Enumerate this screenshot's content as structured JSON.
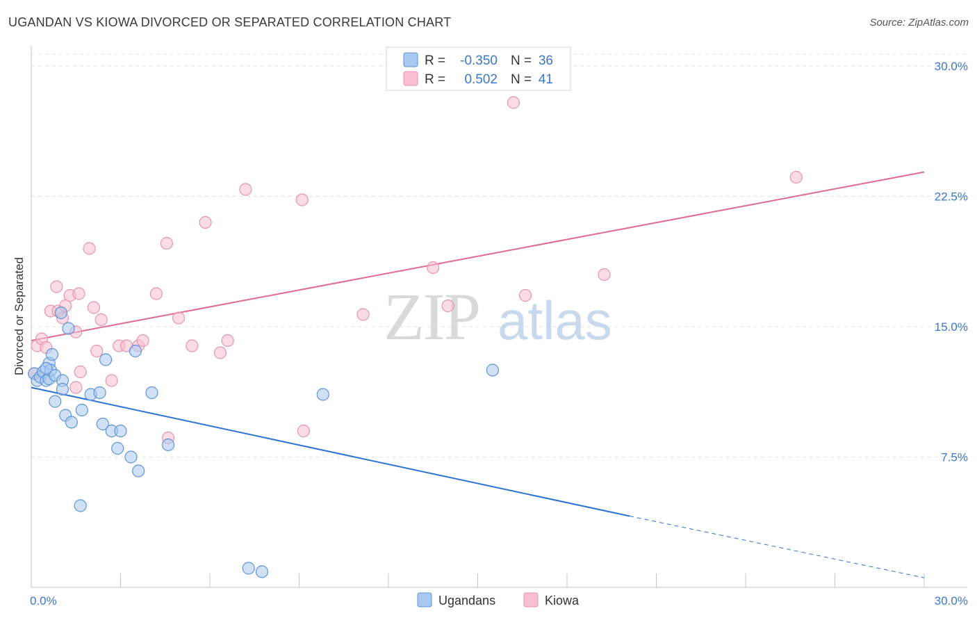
{
  "title": "UGANDAN VS KIOWA DIVORCED OR SEPARATED CORRELATION CHART",
  "source": "Source: ZipAtlas.com",
  "watermark": {
    "zip": "ZIP",
    "atlas": "atlas"
  },
  "colors": {
    "ugandans_fill": "#a9c8ef",
    "ugandans_stroke": "#5b93d6",
    "ugandans_line": "#2a72d4",
    "kiowa_fill": "#f7bfd0",
    "kiowa_stroke": "#e693ad",
    "kiowa_line": "#e0698f",
    "grid": "#dde3ea",
    "axis_text": "#3b78c4"
  },
  "legend": {
    "rows": [
      {
        "r_label": "R =",
        "r_value": "-0.350",
        "n_label": "N =",
        "n_value": "36"
      },
      {
        "r_label": "R =",
        "r_value": "0.502",
        "n_label": "N =",
        "n_value": "41"
      }
    ]
  },
  "chart_data": {
    "type": "scatter",
    "title": "UGANDAN VS KIOWA DIVORCED OR SEPARATED CORRELATION CHART",
    "xlabel": "",
    "ylabel": "Divorced or Separated",
    "xlim": [
      0,
      30
    ],
    "ylim": [
      0,
      31
    ],
    "x_tick_labels": [
      "0.0%",
      "30.0%"
    ],
    "y_ticks": [
      7.5,
      15.0,
      22.5,
      30.0
    ],
    "y_tick_labels": [
      "7.5%",
      "15.0%",
      "22.5%",
      "30.0%"
    ],
    "series": [
      {
        "name": "Ugandans",
        "r": -0.35,
        "n": 36,
        "points": [
          [
            0.1,
            12.3
          ],
          [
            0.2,
            11.9
          ],
          [
            0.3,
            12.1
          ],
          [
            0.4,
            12.4
          ],
          [
            0.5,
            11.9
          ],
          [
            0.6,
            12.0
          ],
          [
            0.6,
            12.9
          ],
          [
            0.7,
            13.4
          ],
          [
            0.65,
            12.5
          ],
          [
            0.8,
            12.2
          ],
          [
            0.8,
            10.7
          ],
          [
            1.0,
            15.8
          ],
          [
            1.05,
            11.9
          ],
          [
            1.05,
            11.4
          ],
          [
            1.15,
            9.9
          ],
          [
            1.25,
            14.9
          ],
          [
            1.35,
            9.5
          ],
          [
            1.7,
            10.2
          ],
          [
            2.0,
            11.1
          ],
          [
            2.3,
            11.2
          ],
          [
            2.4,
            9.4
          ],
          [
            2.5,
            13.1
          ],
          [
            2.7,
            9.0
          ],
          [
            2.9,
            8.0
          ],
          [
            3.0,
            9.0
          ],
          [
            3.35,
            7.5
          ],
          [
            3.5,
            13.6
          ],
          [
            3.6,
            6.7
          ],
          [
            4.05,
            11.2
          ],
          [
            4.6,
            8.2
          ],
          [
            1.65,
            4.7
          ],
          [
            7.3,
            1.1
          ],
          [
            7.75,
            0.9
          ],
          [
            9.8,
            11.1
          ],
          [
            15.5,
            12.5
          ],
          [
            0.5,
            12.6
          ]
        ],
        "trend": {
          "x_start": 0,
          "y_start": 11.5,
          "x_solid_end": 20.1,
          "y_solid_end": 4.1,
          "x_end": 30,
          "y_end": 0.55
        }
      },
      {
        "name": "Kiowa",
        "r": 0.502,
        "n": 41,
        "points": [
          [
            0.1,
            12.3
          ],
          [
            0.2,
            13.9
          ],
          [
            0.35,
            14.3
          ],
          [
            0.5,
            13.8
          ],
          [
            0.65,
            15.9
          ],
          [
            0.85,
            17.3
          ],
          [
            0.9,
            15.9
          ],
          [
            1.05,
            15.5
          ],
          [
            1.15,
            16.2
          ],
          [
            1.3,
            16.8
          ],
          [
            1.5,
            14.7
          ],
          [
            1.6,
            16.9
          ],
          [
            1.65,
            12.4
          ],
          [
            1.95,
            19.5
          ],
          [
            2.1,
            16.1
          ],
          [
            2.2,
            13.6
          ],
          [
            2.35,
            15.4
          ],
          [
            2.7,
            11.9
          ],
          [
            2.95,
            13.9
          ],
          [
            3.2,
            13.9
          ],
          [
            3.6,
            13.9
          ],
          [
            3.75,
            14.2
          ],
          [
            4.2,
            16.9
          ],
          [
            4.55,
            19.8
          ],
          [
            4.6,
            8.6
          ],
          [
            4.95,
            15.5
          ],
          [
            5.4,
            13.9
          ],
          [
            5.85,
            21.0
          ],
          [
            6.35,
            13.5
          ],
          [
            6.6,
            14.2
          ],
          [
            7.2,
            22.9
          ],
          [
            9.1,
            22.3
          ],
          [
            9.15,
            9.0
          ],
          [
            11.15,
            15.7
          ],
          [
            13.5,
            18.4
          ],
          [
            14.0,
            16.2
          ],
          [
            16.2,
            27.9
          ],
          [
            16.6,
            16.8
          ],
          [
            19.25,
            18.0
          ],
          [
            25.7,
            23.6
          ],
          [
            1.5,
            11.5
          ]
        ],
        "trend": {
          "x_start": 0,
          "y_start": 14.2,
          "x_end": 30,
          "y_end": 23.9
        }
      }
    ]
  },
  "bottom_legend": [
    "Ugandans",
    "Kiowa"
  ]
}
